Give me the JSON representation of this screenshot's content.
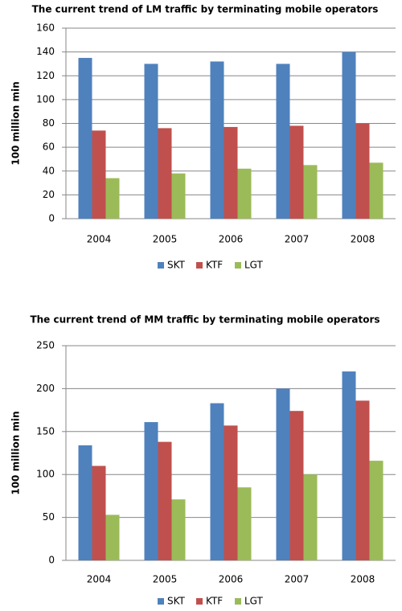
{
  "chart_data": [
    {
      "type": "bar",
      "title": "The current trend of  LM traffic by terminating mobile operators",
      "y_label": "100 million min",
      "categories": [
        "2004",
        "2005",
        "2006",
        "2007",
        "2008"
      ],
      "series": [
        {
          "name": "SKT",
          "color": "#4f81bd",
          "values": [
            135,
            130,
            132,
            130,
            140
          ]
        },
        {
          "name": "KTF",
          "color": "#c0504d",
          "values": [
            74,
            76,
            77,
            78,
            80
          ]
        },
        {
          "name": "LGT",
          "color": "#9bbb59",
          "values": [
            34,
            38,
            42,
            45,
            47
          ]
        }
      ],
      "ylim": [
        0,
        160
      ],
      "yticks": [
        0,
        20,
        40,
        60,
        80,
        100,
        120,
        140,
        160
      ],
      "grid": true,
      "legend": "bottom"
    },
    {
      "type": "bar",
      "title": "The current trend of  MM traffic by terminating mobile operators",
      "y_label": "100 million min",
      "categories": [
        "2004",
        "2005",
        "2006",
        "2007",
        "2008"
      ],
      "series": [
        {
          "name": "SKT",
          "color": "#4f81bd",
          "values": [
            134,
            161,
            183,
            200,
            220
          ]
        },
        {
          "name": "KTF",
          "color": "#c0504d",
          "values": [
            110,
            138,
            157,
            174,
            186
          ]
        },
        {
          "name": "LGT",
          "color": "#9bbb59",
          "values": [
            53,
            71,
            85,
            100,
            116
          ]
        }
      ],
      "ylim": [
        0,
        250
      ],
      "yticks": [
        0,
        50,
        100,
        150,
        200,
        250
      ],
      "grid": true,
      "legend": "bottom"
    }
  ]
}
